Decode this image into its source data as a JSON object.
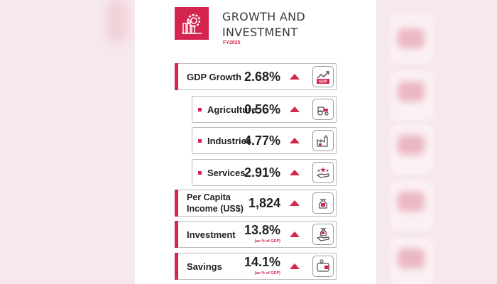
{
  "header": {
    "title": "GROWTH AND INVESTMENT",
    "subtitle": "FY2025",
    "icon": "factory-gear-icon",
    "accent_color": "#d3254d"
  },
  "rows": [
    {
      "label": "GDP Growth",
      "value": "2.68%",
      "trend": "up",
      "icon": "gdp-chart-icon"
    },
    {
      "label": "Agriculture",
      "value": "0.56%",
      "trend": "up",
      "icon": "tractor-icon"
    },
    {
      "label": "Industries",
      "value": "4.77%",
      "trend": "up",
      "icon": "factory-icon"
    },
    {
      "label": "Services",
      "value": "2.91%",
      "trend": "up",
      "icon": "hand-stars-icon"
    },
    {
      "label_line1": "Per Capita",
      "label_line2": "Income (US$)",
      "value": "1,824",
      "trend": "up",
      "icon": "money-bag-icon"
    },
    {
      "label": "Investment",
      "value": "13.8%",
      "note": "(as % of GDP)",
      "trend": "up",
      "icon": "money-bag-hand-icon"
    },
    {
      "label": "Savings",
      "value": "14.1%",
      "note": "(as % of GDP)",
      "trend": "up",
      "icon": "wallet-icon"
    }
  ],
  "icon_labels": {
    "gdp": "GDP"
  }
}
